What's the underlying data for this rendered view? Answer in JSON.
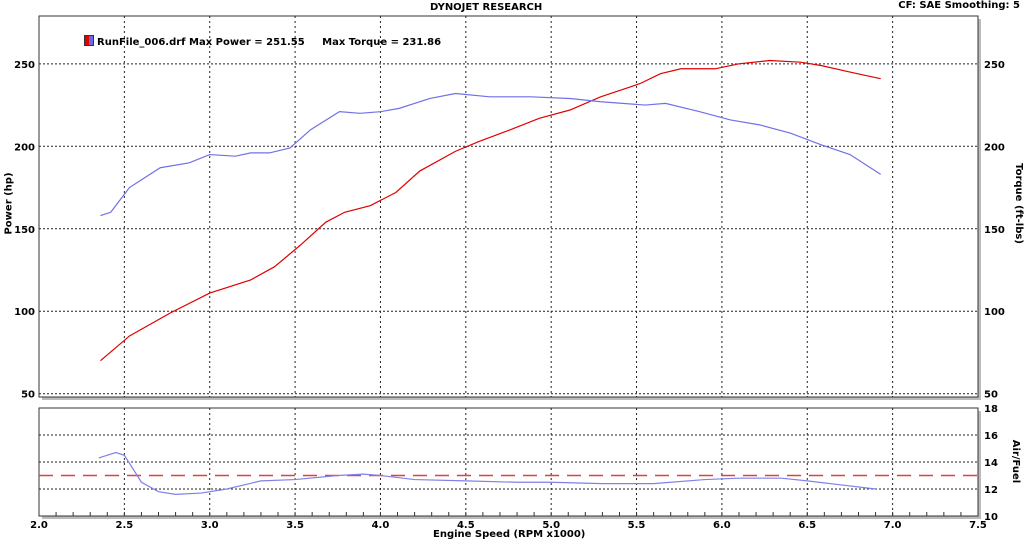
{
  "header": {
    "title": "DYNOJET RESEARCH",
    "settings": "CF: SAE  Smoothing: 5"
  },
  "legend": {
    "text": "RunFile_006.drf Max Power = 251.55     Max Torque = 231.86",
    "colors": [
      "#e00000",
      "#6a6ae0"
    ]
  },
  "chart_data": [
    {
      "type": "line",
      "title": "DYNOJET RESEARCH",
      "xlabel": "Engine Speed (RPM x1000)",
      "ylabel": "Power (hp)",
      "y2label": "Torque (ft-lbs)",
      "xlim": [
        2.0,
        7.5
      ],
      "ylim": [
        48,
        279
      ],
      "yticks": [
        50,
        100,
        150,
        200,
        250
      ],
      "grid": true,
      "legend": "top-left",
      "series": [
        {
          "name": "Power",
          "axis": "left",
          "color": "#e00000",
          "x": [
            2.36,
            2.53,
            2.77,
            3.0,
            3.24,
            3.38,
            3.53,
            3.68,
            3.79,
            3.94,
            4.09,
            4.23,
            4.44,
            4.58,
            4.76,
            4.93,
            5.11,
            5.29,
            5.52,
            5.64,
            5.76,
            5.96,
            6.1,
            6.28,
            6.46,
            6.58,
            6.75,
            6.93
          ],
          "y": [
            70,
            85,
            99,
            111,
            119,
            127,
            140,
            154,
            160,
            164,
            172,
            185,
            197,
            203,
            210,
            217,
            222,
            230,
            238,
            244,
            247,
            247,
            250,
            252,
            251,
            249,
            245,
            241
          ]
        },
        {
          "name": "Torque",
          "axis": "right",
          "color": "#7070e8",
          "x": [
            2.36,
            2.42,
            2.53,
            2.71,
            2.88,
            3.0,
            3.15,
            3.24,
            3.35,
            3.47,
            3.59,
            3.76,
            3.88,
            4.0,
            4.11,
            4.29,
            4.44,
            4.64,
            4.88,
            5.11,
            5.29,
            5.55,
            5.67,
            5.87,
            6.05,
            6.22,
            6.4,
            6.58,
            6.75,
            6.93
          ],
          "y": [
            158,
            160,
            175,
            187,
            190,
            195,
            194,
            196,
            196,
            199,
            210,
            221,
            220,
            221,
            223,
            229,
            232,
            230,
            230,
            229,
            227,
            225,
            226,
            221,
            216,
            213,
            208,
            201,
            195,
            183
          ]
        }
      ]
    },
    {
      "type": "line",
      "xlabel": "Engine Speed (RPM x1000)",
      "ylabel": "Air/Fuel",
      "xlim": [
        2.0,
        7.5
      ],
      "ylim": [
        10,
        18
      ],
      "yticks": [
        10,
        12,
        14,
        16,
        18
      ],
      "xticks": [
        "2.0",
        "2.5",
        "3.0",
        "3.5",
        "4.0",
        "4.5",
        "5.0",
        "5.5",
        "6.0",
        "6.5",
        "7.0",
        "7.5"
      ],
      "reference_line": 13.0,
      "reference_color": "#e04040",
      "series": [
        {
          "name": "Air/Fuel",
          "color": "#8080e8",
          "x": [
            2.35,
            2.45,
            2.5,
            2.6,
            2.7,
            2.8,
            2.95,
            3.1,
            3.3,
            3.5,
            3.75,
            3.9,
            4.0,
            4.2,
            4.5,
            4.8,
            5.0,
            5.3,
            5.6,
            5.9,
            6.1,
            6.35,
            6.5,
            6.7,
            6.9
          ],
          "y": [
            14.3,
            14.7,
            14.5,
            12.5,
            11.8,
            11.6,
            11.7,
            12.0,
            12.6,
            12.7,
            13.0,
            13.1,
            13.0,
            12.7,
            12.6,
            12.5,
            12.5,
            12.4,
            12.4,
            12.7,
            12.8,
            12.8,
            12.6,
            12.3,
            12.0
          ]
        }
      ]
    }
  ]
}
